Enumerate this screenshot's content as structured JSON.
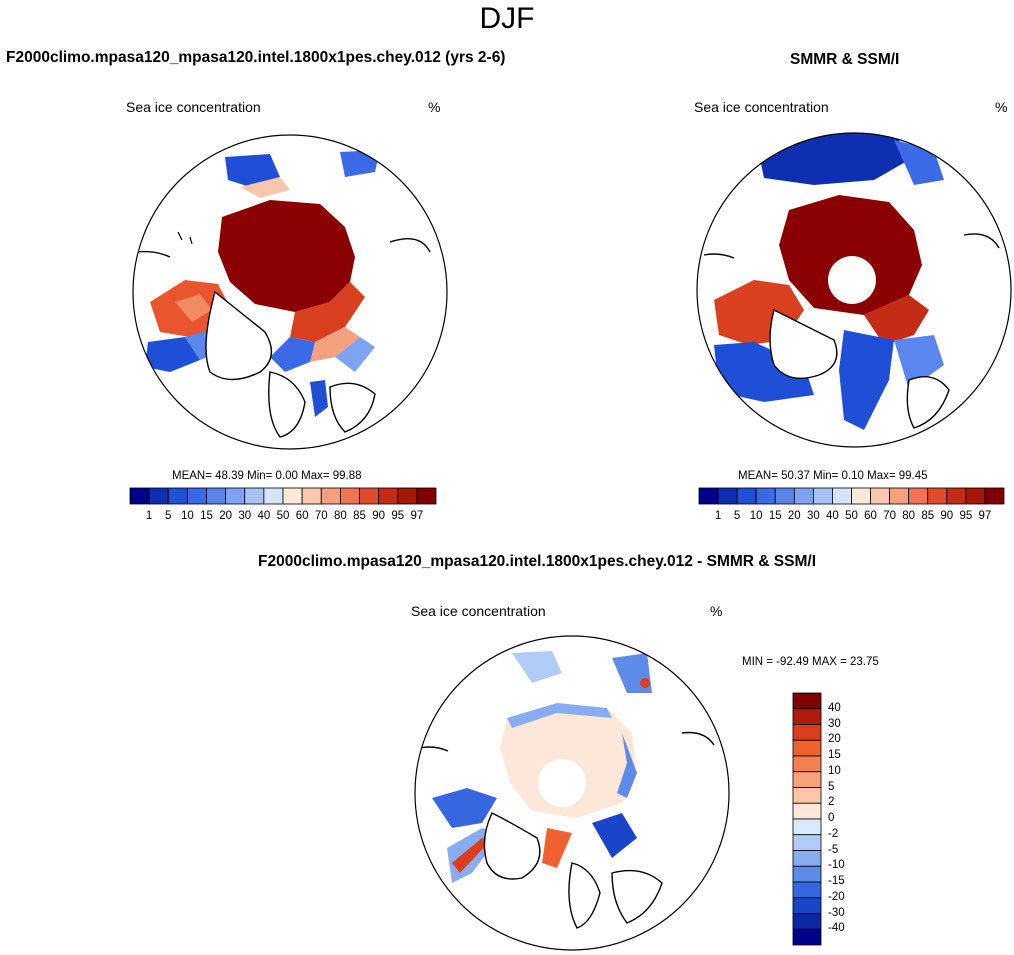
{
  "figure": {
    "season": "DJF"
  },
  "panels": [
    {
      "title": "F2000climo.mpasa120_mpasa120.intel.1800x1pes.chey.012 (yrs 2-6)",
      "variable": "Sea ice concentration",
      "units": "%",
      "stats": "MEAN=  48.39  Min=   0.00  Max=  99.88",
      "projection": "north-polar-stereographic",
      "pole_hole": false
    },
    {
      "title": "SMMR & SSM/I",
      "variable": "Sea ice concentration",
      "units": "%",
      "stats": "MEAN=  50.37  Min=   0.10  Max=  99.45",
      "projection": "north-polar-stereographic",
      "pole_hole": true
    },
    {
      "title": "F2000climo.mpasa120_mpasa120.intel.1800x1pes.chey.012 - SMMR & SSM/I",
      "variable": "Sea ice concentration",
      "units": "%",
      "stats": "MIN = -92.49 MAX = 23.75",
      "projection": "north-polar-stereographic",
      "pole_hole": true
    }
  ],
  "colorbar_main": {
    "orientation": "horizontal",
    "levels": [
      "1",
      "5",
      "10",
      "15",
      "20",
      "30",
      "40",
      "50",
      "60",
      "70",
      "80",
      "85",
      "90",
      "95",
      "97"
    ],
    "colors": [
      "#00008b",
      "#0f2fb3",
      "#1f4fd6",
      "#3a6ae6",
      "#5a86ee",
      "#7ea3f2",
      "#a6c2f5",
      "#d5e5fa",
      "#fde8da",
      "#f9c7ad",
      "#f5a07f",
      "#ee7452",
      "#e04b2c",
      "#c42c16",
      "#a51708",
      "#800000"
    ]
  },
  "colorbar_diff": {
    "orientation": "vertical",
    "levels": [
      "40",
      "30",
      "20",
      "15",
      "10",
      "5",
      "2",
      "0",
      "-2",
      "-5",
      "-10",
      "-15",
      "-20",
      "-30",
      "-40"
    ],
    "colors": [
      "#800000",
      "#b01b0a",
      "#dc3d1c",
      "#f0612f",
      "#f5804f",
      "#f8a27a",
      "#fbc6a8",
      "#fde7d8",
      "#d9e8fa",
      "#b0cbf5",
      "#88acf0",
      "#5e8aea",
      "#3767e0",
      "#1a45c8",
      "#0b27a3",
      "#00008b"
    ]
  }
}
